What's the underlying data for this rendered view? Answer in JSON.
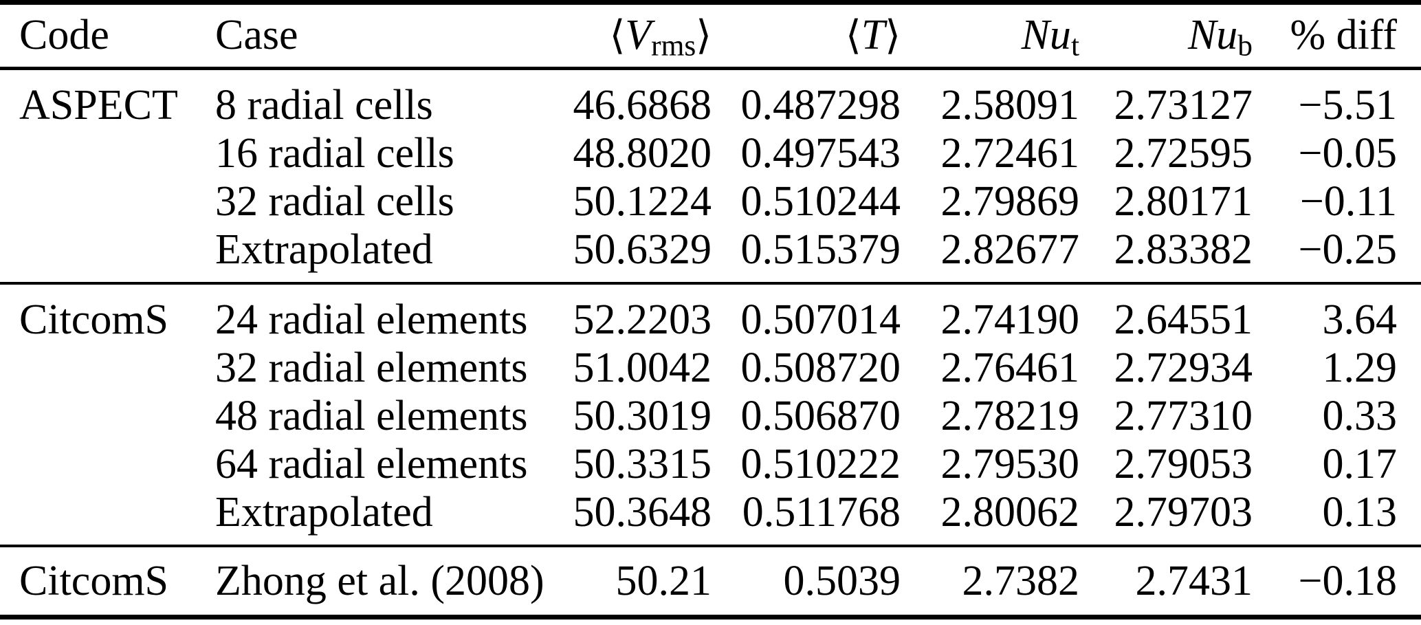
{
  "table": {
    "header": {
      "code": "Code",
      "case": "Case",
      "vrms_open": "⟨",
      "vrms_symbol": "V",
      "vrms_sub": "rms",
      "vrms_close": "⟩",
      "t_open": "⟨",
      "t_symbol": "T",
      "t_close": "⟩",
      "nut_symbol": "Nu",
      "nut_sub": "t",
      "nub_symbol": "Nu",
      "nub_sub": "b",
      "pdiff": "% diff"
    },
    "sections": [
      {
        "code": "ASPECT",
        "rows": [
          {
            "case": "8 radial cells",
            "vrms": "46.6868",
            "t": "0.487298",
            "nu_t": "2.58091",
            "nu_b": "2.73127",
            "pdiff": "−5.51"
          },
          {
            "case": "16 radial cells",
            "vrms": "48.8020",
            "t": "0.497543",
            "nu_t": "2.72461",
            "nu_b": "2.72595",
            "pdiff": "−0.05"
          },
          {
            "case": "32 radial cells",
            "vrms": "50.1224",
            "t": "0.510244",
            "nu_t": "2.79869",
            "nu_b": "2.80171",
            "pdiff": "−0.11"
          },
          {
            "case": "Extrapolated",
            "vrms": "50.6329",
            "t": "0.515379",
            "nu_t": "2.82677",
            "nu_b": "2.83382",
            "pdiff": "−0.25"
          }
        ]
      },
      {
        "code": "CitcomS",
        "rows": [
          {
            "case": "24 radial elements",
            "vrms": "52.2203",
            "t": "0.507014",
            "nu_t": "2.74190",
            "nu_b": "2.64551",
            "pdiff": "3.64"
          },
          {
            "case": "32 radial elements",
            "vrms": "51.0042",
            "t": "0.508720",
            "nu_t": "2.76461",
            "nu_b": "2.72934",
            "pdiff": "1.29"
          },
          {
            "case": "48 radial elements",
            "vrms": "50.3019",
            "t": "0.506870",
            "nu_t": "2.78219",
            "nu_b": "2.77310",
            "pdiff": "0.33"
          },
          {
            "case": "64 radial elements",
            "vrms": "50.3315",
            "t": "0.510222",
            "nu_t": "2.79530",
            "nu_b": "2.79053",
            "pdiff": "0.17"
          },
          {
            "case": "Extrapolated",
            "vrms": "50.3648",
            "t": "0.511768",
            "nu_t": "2.80062",
            "nu_b": "2.79703",
            "pdiff": "0.13"
          }
        ]
      },
      {
        "code": "CitcomS",
        "rows": [
          {
            "case": "Zhong et al. (2008)",
            "vrms": "50.21",
            "t": "0.5039",
            "nu_t": "2.7382",
            "nu_b": "2.7431",
            "pdiff": "−0.18"
          }
        ]
      }
    ]
  },
  "colors": {
    "text": "#000000",
    "background": "#ffffff",
    "rule": "#000000"
  }
}
